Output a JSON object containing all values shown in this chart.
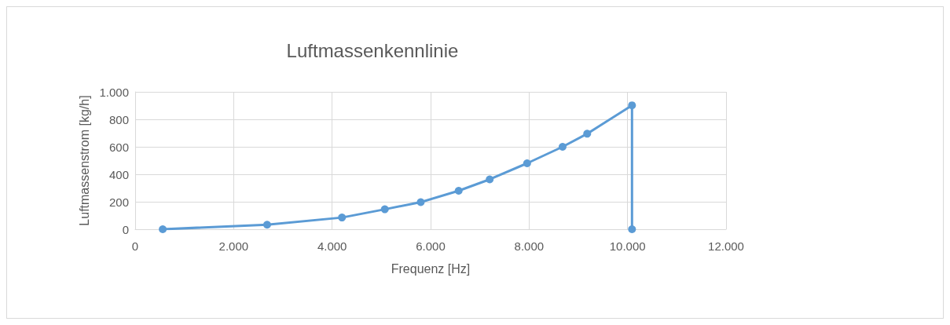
{
  "chart_data": {
    "type": "line",
    "title": "Luftmassenkennlinie",
    "xlabel": "Frequenz [Hz]",
    "ylabel": "Luftmassenstrom [kg/h]",
    "x": [
      560,
      2680,
      4200,
      5070,
      5800,
      6570,
      7200,
      7960,
      8680,
      9180,
      10090,
      10090
    ],
    "series": [
      {
        "color": "#5b9bd5",
        "values": [
          0,
          33,
          85,
          145,
          197,
          280,
          363,
          480,
          600,
          695,
          902,
          0
        ]
      }
    ],
    "xlim": [
      0,
      12000
    ],
    "xticks": [
      {
        "value": 0,
        "label": "0"
      },
      {
        "value": 2000,
        "label": "2.000"
      },
      {
        "value": 4000,
        "label": "4.000"
      },
      {
        "value": 6000,
        "label": "6.000"
      },
      {
        "value": 8000,
        "label": "8.000"
      },
      {
        "value": 10000,
        "label": "10.000"
      },
      {
        "value": 12000,
        "label": "12.000"
      }
    ],
    "ylim": [
      0,
      1000
    ],
    "yticks": [
      0,
      200,
      400,
      600,
      800,
      {
        "value": 1000,
        "label": "1.000"
      }
    ],
    "grid": true,
    "marker": "circle",
    "line_style": "solid"
  }
}
